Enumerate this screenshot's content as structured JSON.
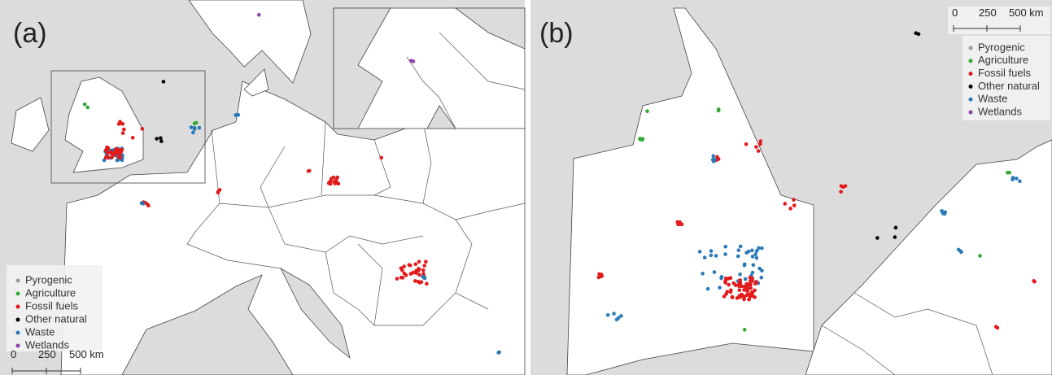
{
  "panels": [
    {
      "label": "(a)",
      "legend": [
        {
          "name": "Pyrogenic",
          "color": "#9a9a9a"
        },
        {
          "name": "Agriculture",
          "color": "#33aa33"
        },
        {
          "name": "Fossil fuels",
          "color": "#e31a1c"
        },
        {
          "name": "Other natural",
          "color": "#000000"
        },
        {
          "name": "Waste",
          "color": "#2a7ab8"
        },
        {
          "name": "Wetlands",
          "color": "#8e44ad"
        }
      ],
      "scale_bar": [
        "0",
        "250",
        "500 km"
      ]
    },
    {
      "label": "(b)",
      "legend": [
        {
          "name": "Pyrogenic",
          "color": "#9a9a9a"
        },
        {
          "name": "Agriculture",
          "color": "#33aa33"
        },
        {
          "name": "Fossil fuels",
          "color": "#e31a1c"
        },
        {
          "name": "Other natural",
          "color": "#000000"
        },
        {
          "name": "Waste",
          "color": "#2a7ab8"
        },
        {
          "name": "Wetlands",
          "color": "#8e44ad"
        }
      ],
      "scale_bar": [
        "0",
        "250",
        "500 km"
      ]
    }
  ]
}
